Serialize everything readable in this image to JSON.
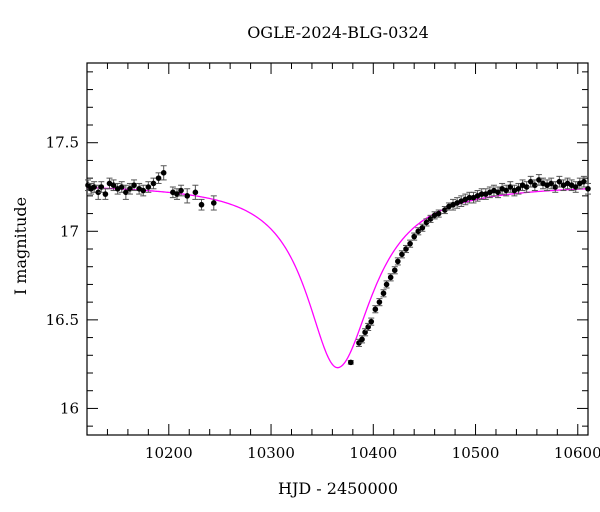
{
  "chart_data": {
    "type": "scatter",
    "title": "OGLE-2024-BLG-0324",
    "xlabel": "HJD - 2450000",
    "ylabel": "I magnitude",
    "xlim": [
      10120,
      10610
    ],
    "ylim": [
      17.95,
      15.85
    ],
    "y_inverted": true,
    "x_ticks": [
      10200,
      10300,
      10400,
      10500,
      10600
    ],
    "x_tick_labels": [
      "10200",
      "10300",
      "10400",
      "10500",
      "10600"
    ],
    "y_ticks": [
      16,
      16.5,
      17,
      17.5
    ],
    "y_tick_labels": [
      "16",
      "16.5",
      "17",
      "17.5"
    ],
    "grid": false,
    "legend": "none",
    "colors": {
      "data": "#000000",
      "model": "#ff00ff",
      "errorbar": "#555555"
    },
    "model": {
      "name": "",
      "type": "microlensing-fit",
      "baseline_mag": 17.27,
      "peak_mag": 16.23,
      "t0": 10365,
      "tE_rise": 40,
      "tE_fall": 45
    },
    "series": [
      {
        "name": "",
        "x": [
          10121,
          10124,
          10127,
          10131,
          10134,
          10138,
          10142,
          10146,
          10150,
          10154,
          10158,
          10162,
          10166,
          10171,
          10175,
          10180,
          10185,
          10190,
          10195,
          10204,
          10208,
          10212,
          10218,
          10226,
          10232,
          10244,
          10378,
          10386,
          10389,
          10392,
          10395,
          10398,
          10402,
          10406,
          10410,
          10413,
          10417,
          10421,
          10424,
          10428,
          10432,
          10436,
          10440,
          10444,
          10448,
          10452,
          10456,
          10460,
          10464,
          10470,
          10474,
          10478,
          10482,
          10486,
          10490,
          10494,
          10498,
          10502,
          10506,
          10510,
          10514,
          10518,
          10522,
          10526,
          10530,
          10534,
          10538,
          10542,
          10546,
          10550,
          10554,
          10558,
          10562,
          10566,
          10570,
          10574,
          10578,
          10582,
          10586,
          10590,
          10594,
          10598,
          10602,
          10606,
          10610
        ],
        "y": [
          17.26,
          17.24,
          17.25,
          17.22,
          17.25,
          17.21,
          17.27,
          17.26,
          17.24,
          17.25,
          17.22,
          17.24,
          17.26,
          17.24,
          17.23,
          17.25,
          17.27,
          17.3,
          17.33,
          17.22,
          17.21,
          17.23,
          17.2,
          17.22,
          17.15,
          17.16,
          16.26,
          16.37,
          16.39,
          16.43,
          16.46,
          16.49,
          16.56,
          16.6,
          16.65,
          16.7,
          16.74,
          16.78,
          16.83,
          16.87,
          16.9,
          16.93,
          16.97,
          17.0,
          17.02,
          17.05,
          17.07,
          17.09,
          17.1,
          17.12,
          17.14,
          17.15,
          17.16,
          17.17,
          17.18,
          17.19,
          17.19,
          17.2,
          17.21,
          17.21,
          17.22,
          17.23,
          17.22,
          17.24,
          17.23,
          17.25,
          17.23,
          17.24,
          17.26,
          17.25,
          17.28,
          17.26,
          17.29,
          17.27,
          17.26,
          17.27,
          17.25,
          17.28,
          17.26,
          17.27,
          17.26,
          17.25,
          17.27,
          17.28,
          17.24
        ],
        "err": [
          0.03,
          0.03,
          0.03,
          0.04,
          0.03,
          0.03,
          0.03,
          0.03,
          0.03,
          0.03,
          0.04,
          0.03,
          0.03,
          0.03,
          0.03,
          0.03,
          0.03,
          0.03,
          0.04,
          0.03,
          0.03,
          0.03,
          0.04,
          0.04,
          0.03,
          0.04,
          0.01,
          0.02,
          0.02,
          0.02,
          0.02,
          0.02,
          0.02,
          0.02,
          0.02,
          0.02,
          0.02,
          0.02,
          0.02,
          0.02,
          0.02,
          0.02,
          0.02,
          0.02,
          0.02,
          0.02,
          0.02,
          0.02,
          0.02,
          0.02,
          0.02,
          0.03,
          0.03,
          0.03,
          0.03,
          0.03,
          0.03,
          0.03,
          0.03,
          0.03,
          0.03,
          0.03,
          0.03,
          0.03,
          0.03,
          0.03,
          0.03,
          0.03,
          0.03,
          0.03,
          0.03,
          0.03,
          0.03,
          0.03,
          0.03,
          0.03,
          0.03,
          0.03,
          0.03,
          0.03,
          0.03,
          0.03,
          0.03,
          0.03,
          0.03
        ]
      }
    ]
  }
}
